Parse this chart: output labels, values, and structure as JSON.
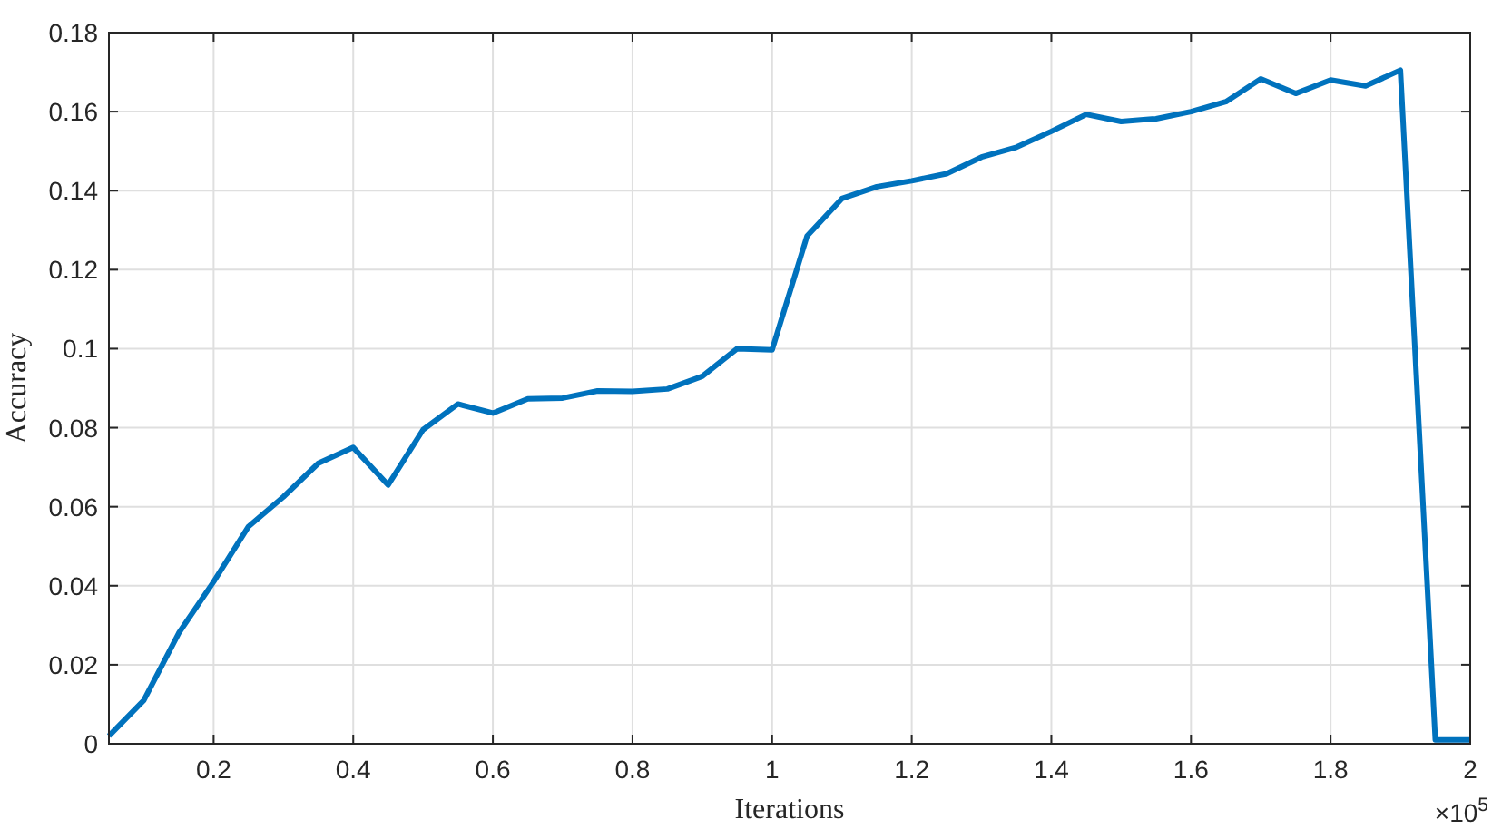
{
  "chart_data": {
    "type": "line",
    "xlabel": "Iterations",
    "ylabel": "Accuracy",
    "annotations": [
      "×10$^{5}$"
    ],
    "x": [
      0.05,
      0.1,
      0.15,
      0.2,
      0.25,
      0.3,
      0.35,
      0.4,
      0.45,
      0.5,
      0.55,
      0.6,
      0.65,
      0.7,
      0.75,
      0.8,
      0.85,
      0.9,
      0.95,
      1.0,
      1.05,
      1.1,
      1.15,
      1.2,
      1.25,
      1.3,
      1.35,
      1.4,
      1.45,
      1.5,
      1.55,
      1.6,
      1.65,
      1.7,
      1.75,
      1.8,
      1.85,
      1.9,
      1.95,
      2.0
    ],
    "series": [
      {
        "color": "#0072bd",
        "values": [
          0.002,
          0.011,
          0.028,
          0.041,
          0.055,
          0.0625,
          0.071,
          0.075,
          0.0655,
          0.0795,
          0.086,
          0.0837,
          0.0873,
          0.0875,
          0.0893,
          0.0892,
          0.0898,
          0.093,
          0.1,
          0.0997,
          0.1285,
          0.138,
          0.141,
          0.1425,
          0.1443,
          0.1485,
          0.151,
          0.155,
          0.1593,
          0.1575,
          0.1582,
          0.16,
          0.1625,
          0.1683,
          0.1646,
          0.168,
          0.1665,
          0.1705,
          0.001,
          0.001
        ]
      }
    ],
    "xlim": [
      0.05,
      2
    ],
    "xticks": [
      0.2,
      0.4,
      0.6,
      0.8,
      1,
      1.2,
      1.4,
      1.6,
      1.8,
      2
    ],
    "ylim": [
      0,
      0.18
    ],
    "yticks": [
      0,
      0.02,
      0.04,
      0.06,
      0.08,
      0.1,
      0.12,
      0.14,
      0.16,
      0.18
    ],
    "grid": true,
    "marker": "none",
    "line_style": "solid"
  }
}
